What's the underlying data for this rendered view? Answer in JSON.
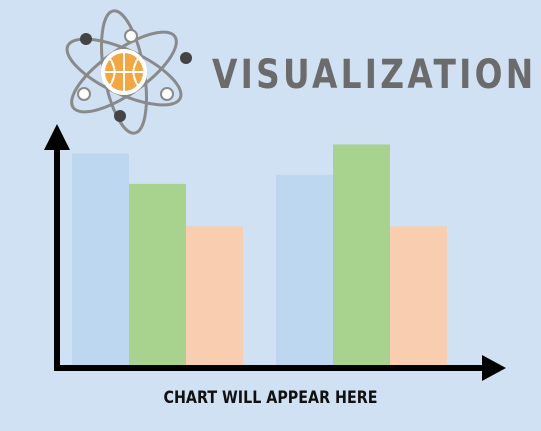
{
  "title": "VISUALIZATION",
  "caption": "CHART WILL APPEAR HERE",
  "logo": {
    "icon": "atom-basketball-icon"
  },
  "colors": {
    "background": "#cfe1f3",
    "title": "#6b6b6b",
    "axis": "#000000",
    "series": [
      "#bcd7ef",
      "#a8d38e",
      "#f8cdb0"
    ]
  },
  "chart_data": {
    "type": "bar",
    "categories": [
      "",
      ""
    ],
    "series": [
      {
        "values": [
          7.0,
          6.3
        ]
      },
      {
        "values": [
          6.0,
          7.3
        ]
      },
      {
        "values": [
          4.6,
          4.6
        ]
      }
    ],
    "ylim": [
      0,
      8.6
    ],
    "grid": false,
    "legend": "none"
  }
}
